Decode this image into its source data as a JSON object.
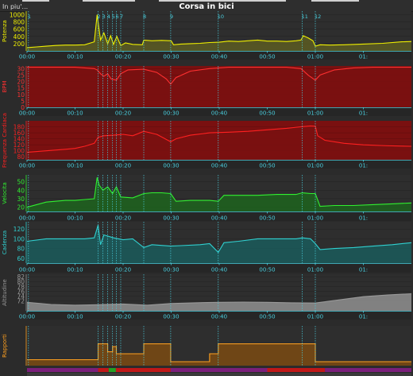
{
  "header": {
    "extra_label": "In piu'...",
    "title": "Corsa in bici"
  },
  "chart_data": {
    "type": "line",
    "title": "Corsa in bici",
    "x_unit": "elapsed time (h:mm)",
    "x_range_minutes": [
      0,
      80
    ],
    "x_ticks": [
      "00:00",
      "00:10",
      "00:20",
      "00:30",
      "00:40",
      "00:50",
      "01:00",
      "01:"
    ],
    "intervals": [
      {
        "label": "1",
        "start_min": 0.3
      },
      {
        "label": "2",
        "start_min": 14.8
      },
      {
        "label": "3",
        "start_min": 15.8
      },
      {
        "label": "4",
        "start_min": 16.8
      },
      {
        "label": "5",
        "start_min": 17.8
      },
      {
        "label": "6",
        "start_min": 18.6
      },
      {
        "label": "7",
        "start_min": 19.5
      },
      {
        "label": "8",
        "start_min": 24.3
      },
      {
        "label": "9",
        "start_min": 29.9
      },
      {
        "label": "10",
        "start_min": 39.8
      },
      {
        "label": "11",
        "start_min": 57.3
      },
      {
        "label": "12",
        "start_min": 60.0
      }
    ],
    "panels": [
      {
        "name": "Potenza",
        "color": "#f0f000",
        "fill": "#5c5c22",
        "bg": "#2e2e2e",
        "ylim": [
          0,
          1100
        ],
        "yticks": [
          200,
          400,
          600,
          800,
          1000
        ],
        "x": [
          0,
          2,
          4,
          6,
          8,
          10,
          12,
          14,
          14.6,
          14.9,
          15.3,
          16,
          16.8,
          17.4,
          18,
          18.7,
          19.5,
          20.5,
          22,
          24,
          24.3,
          26,
          28,
          30,
          30.5,
          32,
          34,
          36,
          38,
          40,
          42,
          44,
          46,
          48,
          50,
          52,
          54,
          56,
          57,
          57.5,
          58.5,
          59.5,
          60,
          61,
          63,
          66,
          70,
          74,
          78,
          80
        ],
        "y": [
          90,
          110,
          130,
          150,
          160,
          160,
          170,
          250,
          1000,
          700,
          300,
          500,
          200,
          420,
          180,
          400,
          150,
          220,
          180,
          170,
          300,
          280,
          290,
          280,
          170,
          190,
          200,
          210,
          230,
          240,
          270,
          260,
          280,
          300,
          270,
          270,
          260,
          280,
          300,
          420,
          360,
          280,
          130,
          170,
          160,
          170,
          190,
          210,
          250,
          260
        ]
      },
      {
        "name": "BPM",
        "color": "#ff3030",
        "fill": "#7a1010",
        "bg": "#7a1010",
        "ylim": [
          0,
          32
        ],
        "yticks": [
          0,
          5,
          10,
          15,
          20,
          25,
          30
        ],
        "x": [
          0,
          5,
          10,
          12,
          14,
          14.6,
          15.3,
          16,
          16.8,
          17.5,
          18.6,
          19.5,
          21,
          24.3,
          27,
          29,
          29.9,
          31,
          34,
          38,
          42,
          46,
          50,
          54,
          57,
          57.3,
          58.5,
          60,
          61,
          64,
          68,
          72,
          76,
          80
        ],
        "y": [
          31,
          31,
          31,
          30.5,
          30,
          29,
          26,
          24,
          26,
          22,
          21,
          26,
          29,
          29.5,
          27,
          22,
          18,
          23,
          28,
          30,
          31,
          31,
          31,
          31,
          30,
          29,
          25,
          21,
          25,
          29,
          30.5,
          31,
          31,
          31
        ]
      },
      {
        "name": "Frequenza Cardiaca",
        "color": "#ff2020",
        "fill": "#7a1010",
        "bg": "#7a1010",
        "ylim": [
          70,
          200
        ],
        "yticks": [
          80,
          100,
          120,
          140,
          160,
          180
        ],
        "x": [
          0,
          4,
          8,
          10,
          12,
          14,
          14.8,
          16,
          18,
          20,
          22,
          24.3,
          27,
          29.9,
          31,
          34,
          38,
          42,
          46,
          50,
          54,
          57,
          59,
          60,
          60.5,
          62,
          66,
          70,
          75,
          80
        ],
        "y": [
          95,
          100,
          105,
          108,
          115,
          125,
          145,
          150,
          152,
          155,
          150,
          165,
          155,
          130,
          140,
          152,
          160,
          162,
          165,
          170,
          175,
          180,
          183,
          182,
          150,
          135,
          125,
          120,
          117,
          115
        ]
      },
      {
        "name": "Velocita",
        "color": "#30f030",
        "fill": "#1d631d",
        "bg": "#2e2e2e",
        "ylim": [
          15,
          58
        ],
        "yticks": [
          20,
          30,
          40,
          50
        ],
        "x": [
          0,
          4,
          8,
          10,
          12,
          14,
          14.6,
          15,
          15.8,
          16.8,
          17.8,
          18.6,
          19.5,
          22,
          24.3,
          26,
          28,
          29.9,
          31,
          34,
          38,
          39.8,
          41,
          44,
          48,
          52,
          56,
          57.3,
          59,
          60,
          61,
          64,
          68,
          72,
          76,
          80
        ],
        "y": [
          20,
          26,
          28,
          28,
          29,
          30,
          55,
          46,
          40,
          44,
          36,
          44,
          32,
          31,
          36,
          37,
          37,
          36,
          27,
          28,
          28,
          27,
          34,
          34,
          34,
          35,
          35,
          37,
          36,
          36,
          21,
          22,
          22,
          23,
          24,
          25
        ]
      },
      {
        "name": "Cadenza",
        "color": "#30d0d0",
        "fill": "#1a5a5a",
        "bg": "#2e2e2e",
        "ylim": [
          50,
          135
        ],
        "yticks": [
          60,
          80,
          100,
          120
        ],
        "x": [
          0,
          4,
          8,
          12,
          14,
          14.8,
          15.3,
          16,
          18,
          20,
          22,
          24.3,
          26,
          29.9,
          32,
          36,
          38,
          39.8,
          41,
          44,
          48,
          52,
          56,
          57.3,
          59,
          60,
          61,
          64,
          68,
          72,
          76,
          80
        ],
        "y": [
          95,
          100,
          100,
          100,
          102,
          128,
          88,
          108,
          102,
          98,
          100,
          82,
          88,
          85,
          86,
          88,
          90,
          72,
          92,
          95,
          100,
          100,
          100,
          102,
          100,
          90,
          78,
          80,
          82,
          85,
          88,
          92
        ]
      },
      {
        "name": "Altitudine",
        "color": "#999999",
        "fill": "#8f8f8f",
        "bg": "#2e2e2e",
        "ylim": [
          68,
          83
        ],
        "yticks": [
          72,
          74,
          76,
          78,
          80,
          82
        ],
        "x": [
          0,
          5,
          10,
          15,
          20,
          25,
          30,
          35,
          40,
          45,
          50,
          55,
          60,
          65,
          70,
          75,
          80
        ],
        "y": [
          71.5,
          70.6,
          70.3,
          70.5,
          70.8,
          70.3,
          71.0,
          71.3,
          71.5,
          71.6,
          71.5,
          71.3,
          71.2,
          72.5,
          73.8,
          74.5,
          75.0
        ]
      },
      {
        "name": "Rapporti",
        "color": "#ffa020",
        "fill": "#7a4a12",
        "bg": "#2e2e2e",
        "ylim": [
          0,
          10
        ],
        "yticks": [],
        "x": [
          0,
          14.8,
          14.8,
          16.8,
          16.8,
          17.8,
          17.8,
          18.6,
          18.6,
          24.3,
          24.3,
          29.9,
          29.9,
          38,
          38,
          39.8,
          39.8,
          60,
          60,
          80
        ],
        "y": [
          1.5,
          1.5,
          5.5,
          5.5,
          3.5,
          3.5,
          4.8,
          4.8,
          3.0,
          3.0,
          5.5,
          5.5,
          1.0,
          1.0,
          3.0,
          3.0,
          5.5,
          5.5,
          1.0,
          1.0
        ]
      }
    ]
  }
}
